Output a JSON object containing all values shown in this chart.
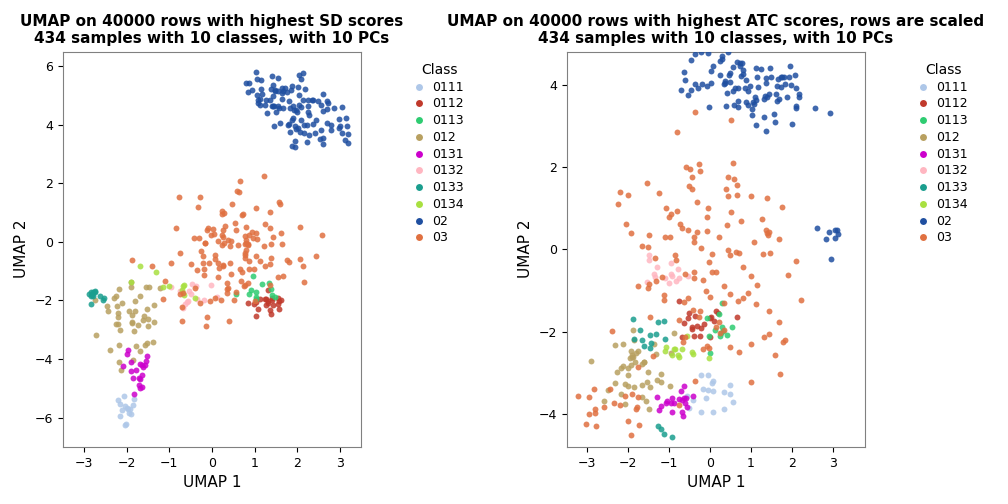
{
  "title1": "UMAP on 40000 rows with highest SD scores\n434 samples with 10 classes, with 10 PCs",
  "title2": "UMAP on 40000 rows with highest ATC scores, rows are scaled\n434 samples with 10 classes, with 10 PCs",
  "xlabel": "UMAP 1",
  "ylabel": "UMAP 2",
  "classes": [
    "0111",
    "0112",
    "0113",
    "012",
    "0131",
    "0132",
    "0133",
    "0134",
    "02",
    "03"
  ],
  "colors": {
    "0111": "#aec7e8",
    "0112": "#c0392b",
    "0113": "#2ecc71",
    "012": "#b8a060",
    "0131": "#cc00cc",
    "0132": "#ffb6c1",
    "0133": "#1a9e8e",
    "0134": "#a8e040",
    "02": "#1f4fa0",
    "03": "#e07040"
  },
  "xlim1": [
    -3.5,
    3.5
  ],
  "ylim1": [
    -7.0,
    6.5
  ],
  "xlim2": [
    -3.5,
    3.8
  ],
  "ylim2": [
    -4.8,
    4.8
  ],
  "xticks1": [
    -3,
    -2,
    -1,
    0,
    1,
    2,
    3
  ],
  "yticks1": [
    -6,
    -4,
    -2,
    0,
    2,
    4,
    6
  ],
  "xticks2": [
    -3,
    -2,
    -1,
    0,
    1,
    2,
    3
  ],
  "yticks2": [
    -4,
    -2,
    0,
    2,
    4
  ],
  "marker_size": 18,
  "alpha": 0.85
}
